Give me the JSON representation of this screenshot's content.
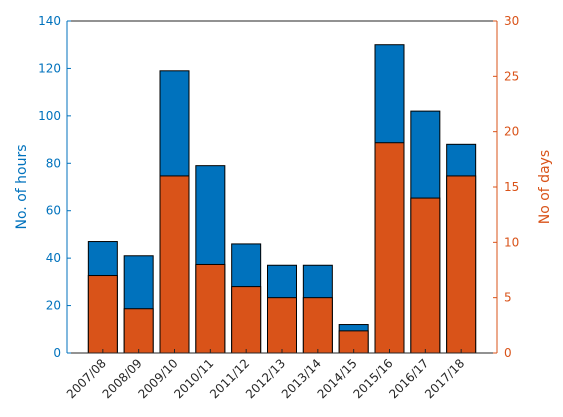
{
  "chart_data": {
    "type": "bar",
    "categories": [
      "2007/08",
      "2008/09",
      "2009/10",
      "2010/11",
      "2011/12",
      "2012/13",
      "2013/14",
      "2014/15",
      "2015/16",
      "2016/17",
      "2017/18"
    ],
    "series": [
      {
        "name": "",
        "axis": "left",
        "color": "#0072bd",
        "values": [
          47,
          41,
          119,
          79,
          46,
          37,
          37,
          12,
          130,
          102,
          88
        ]
      },
      {
        "name": "",
        "axis": "right",
        "color": "#d95319",
        "values": [
          7,
          4,
          16,
          8,
          6,
          5,
          5,
          2,
          19,
          14,
          16
        ]
      }
    ],
    "ylabel_left": "No. of hours",
    "ylabel_right": "No of days",
    "ylim_left": [
      0,
      140
    ],
    "ylim_right": [
      0,
      30
    ],
    "yticks_left": [
      0,
      20,
      40,
      60,
      80,
      100,
      120,
      140
    ],
    "yticks_right": [
      0,
      5,
      10,
      15,
      20,
      25,
      30
    ],
    "left_axis_color": "#0072bd",
    "right_axis_color": "#d95319",
    "grid": false
  }
}
